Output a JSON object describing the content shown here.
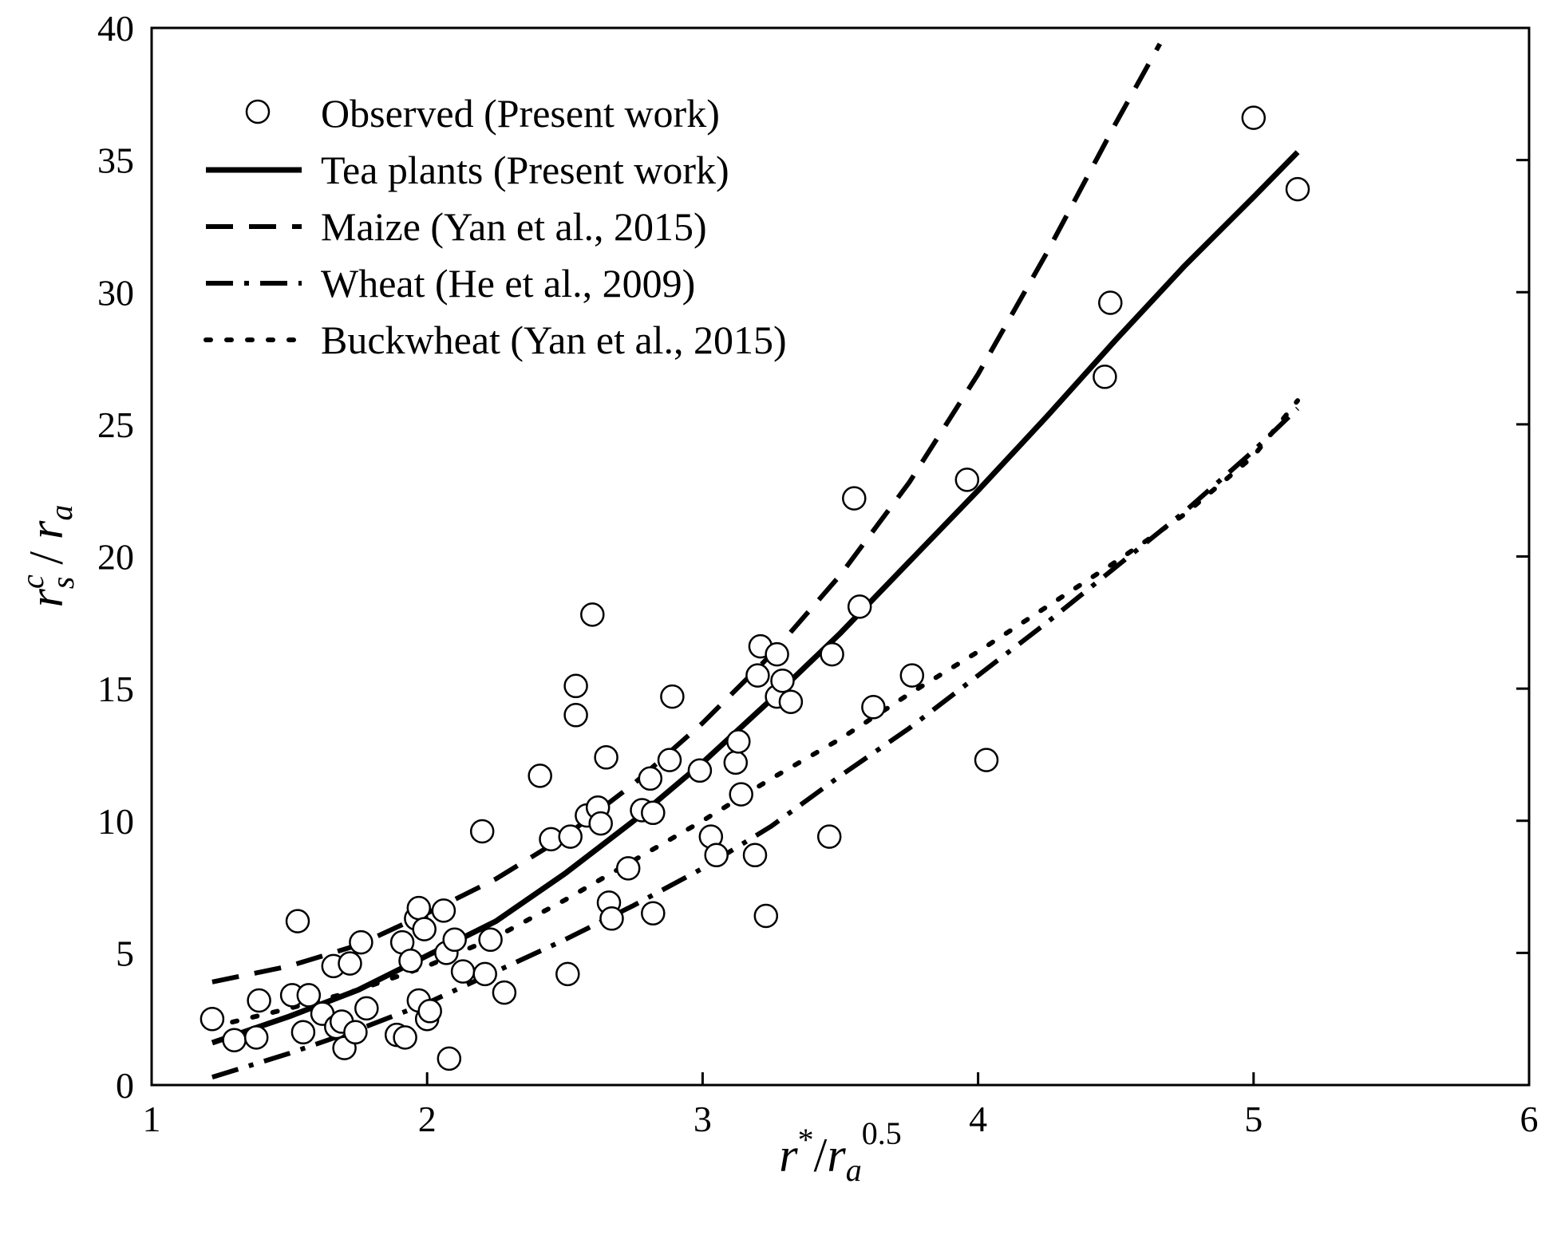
{
  "chart_data": {
    "type": "scatter",
    "title": "",
    "xlabel": {
      "base": "r",
      "star": "*",
      "slash": "/",
      "denom": "r",
      "denom_sub": "a",
      "exponent": "0.5"
    },
    "ylabel": {
      "base": "r",
      "sup": "c",
      "sub": "s",
      "slash": " / ",
      "denom": "r",
      "denom_sub": "a"
    },
    "xlim": [
      1,
      6
    ],
    "ylim": [
      0,
      40
    ],
    "xticks": [
      1,
      2,
      3,
      4,
      5,
      6
    ],
    "yticks": [
      0,
      5,
      10,
      15,
      20,
      25,
      30,
      35,
      40
    ],
    "xtick_labels": [
      "1",
      "2",
      "3",
      "4",
      "5",
      "6"
    ],
    "ytick_labels": [
      "0",
      "5",
      "10",
      "15",
      "20",
      "25",
      "30",
      "35",
      "40"
    ],
    "grid": false,
    "legend_position": "top-left",
    "series": [
      {
        "name": "Observed  (Present work)",
        "kind": "scatter",
        "marker": "open-circle",
        "points": [
          [
            1.22,
            2.5
          ],
          [
            1.3,
            1.7
          ],
          [
            1.38,
            1.8
          ],
          [
            1.39,
            3.2
          ],
          [
            1.51,
            3.4
          ],
          [
            1.53,
            6.2
          ],
          [
            1.55,
            2.0
          ],
          [
            1.57,
            3.4
          ],
          [
            1.62,
            2.7
          ],
          [
            1.66,
            4.5
          ],
          [
            1.67,
            2.2
          ],
          [
            1.69,
            2.4
          ],
          [
            1.7,
            1.4
          ],
          [
            1.72,
            4.6
          ],
          [
            1.74,
            2.0
          ],
          [
            1.76,
            5.4
          ],
          [
            1.78,
            2.9
          ],
          [
            1.89,
            1.9
          ],
          [
            1.91,
            5.4
          ],
          [
            1.92,
            1.8
          ],
          [
            1.94,
            4.7
          ],
          [
            1.96,
            6.3
          ],
          [
            1.97,
            6.7
          ],
          [
            1.97,
            3.2
          ],
          [
            1.99,
            5.9
          ],
          [
            2.0,
            2.5
          ],
          [
            2.01,
            2.8
          ],
          [
            2.06,
            6.6
          ],
          [
            2.07,
            5.0
          ],
          [
            2.08,
            1.0
          ],
          [
            2.1,
            5.5
          ],
          [
            2.13,
            4.3
          ],
          [
            2.2,
            9.6
          ],
          [
            2.21,
            4.2
          ],
          [
            2.23,
            5.5
          ],
          [
            2.28,
            3.5
          ],
          [
            2.41,
            11.7
          ],
          [
            2.45,
            9.3
          ],
          [
            2.51,
            4.2
          ],
          [
            2.52,
            9.4
          ],
          [
            2.54,
            15.1
          ],
          [
            2.54,
            14.0
          ],
          [
            2.58,
            10.2
          ],
          [
            2.6,
            17.8
          ],
          [
            2.62,
            10.5
          ],
          [
            2.63,
            9.9
          ],
          [
            2.65,
            12.4
          ],
          [
            2.66,
            6.9
          ],
          [
            2.67,
            6.3
          ],
          [
            2.73,
            8.2
          ],
          [
            2.78,
            10.4
          ],
          [
            2.81,
            11.6
          ],
          [
            2.82,
            6.5
          ],
          [
            2.82,
            10.3
          ],
          [
            2.88,
            12.3
          ],
          [
            2.89,
            14.7
          ],
          [
            2.99,
            11.9
          ],
          [
            3.03,
            9.4
          ],
          [
            3.05,
            8.7
          ],
          [
            3.12,
            12.2
          ],
          [
            3.13,
            13.0
          ],
          [
            3.14,
            11.0
          ],
          [
            3.19,
            8.7
          ],
          [
            3.2,
            15.5
          ],
          [
            3.21,
            16.6
          ],
          [
            3.23,
            6.4
          ],
          [
            3.27,
            16.3
          ],
          [
            3.27,
            14.7
          ],
          [
            3.29,
            15.3
          ],
          [
            3.32,
            14.5
          ],
          [
            3.46,
            9.4
          ],
          [
            3.47,
            16.3
          ],
          [
            3.55,
            22.2
          ],
          [
            3.57,
            18.1
          ],
          [
            3.62,
            14.3
          ],
          [
            3.76,
            15.5
          ],
          [
            3.96,
            22.9
          ],
          [
            4.03,
            12.3
          ],
          [
            4.46,
            26.8
          ],
          [
            4.48,
            29.6
          ],
          [
            5.0,
            36.6
          ],
          [
            5.16,
            33.9
          ]
        ]
      },
      {
        "name": "Tea plants (Present work)",
        "kind": "line",
        "dash": "solid",
        "points": [
          [
            1.22,
            1.6
          ],
          [
            1.5,
            2.6
          ],
          [
            1.75,
            3.6
          ],
          [
            2.0,
            4.9
          ],
          [
            2.25,
            6.2
          ],
          [
            2.5,
            8.0
          ],
          [
            2.75,
            10.0
          ],
          [
            3.0,
            12.2
          ],
          [
            3.25,
            14.6
          ],
          [
            3.5,
            17.1
          ],
          [
            3.75,
            19.8
          ],
          [
            4.0,
            22.5
          ],
          [
            4.25,
            25.3
          ],
          [
            4.5,
            28.2
          ],
          [
            4.75,
            31.0
          ],
          [
            5.0,
            33.6
          ],
          [
            5.16,
            35.3
          ]
        ]
      },
      {
        "name": "Maize (Yan et al., 2015)",
        "kind": "line",
        "dash": "dashed",
        "points": [
          [
            1.22,
            3.9
          ],
          [
            1.5,
            4.5
          ],
          [
            1.75,
            5.3
          ],
          [
            2.0,
            6.5
          ],
          [
            2.25,
            7.8
          ],
          [
            2.5,
            9.4
          ],
          [
            2.75,
            11.4
          ],
          [
            3.0,
            13.7
          ],
          [
            3.25,
            16.3
          ],
          [
            3.5,
            19.3
          ],
          [
            3.75,
            22.8
          ],
          [
            4.0,
            26.9
          ],
          [
            4.25,
            31.5
          ],
          [
            4.5,
            36.4
          ],
          [
            4.66,
            39.4
          ]
        ]
      },
      {
        "name": "Wheat (He et al., 2009)",
        "kind": "line",
        "dash": "dash-dot",
        "points": [
          [
            1.22,
            0.3
          ],
          [
            1.5,
            1.2
          ],
          [
            1.75,
            2.1
          ],
          [
            2.0,
            3.1
          ],
          [
            2.25,
            4.3
          ],
          [
            2.5,
            5.5
          ],
          [
            2.75,
            6.8
          ],
          [
            3.0,
            8.2
          ],
          [
            3.25,
            9.8
          ],
          [
            3.5,
            11.7
          ],
          [
            3.75,
            13.5
          ],
          [
            4.0,
            15.5
          ],
          [
            4.25,
            17.5
          ],
          [
            4.5,
            19.6
          ],
          [
            4.75,
            21.7
          ],
          [
            5.0,
            24.0
          ],
          [
            5.16,
            25.6
          ]
        ]
      },
      {
        "name": "Buckwheat (Yan et al., 2015)",
        "kind": "line",
        "dash": "dotted",
        "points": [
          [
            1.22,
            2.2
          ],
          [
            1.5,
            2.9
          ],
          [
            1.75,
            3.6
          ],
          [
            2.0,
            4.5
          ],
          [
            2.25,
            5.6
          ],
          [
            2.5,
            7.0
          ],
          [
            2.75,
            8.5
          ],
          [
            3.0,
            10.0
          ],
          [
            3.25,
            11.6
          ],
          [
            3.5,
            13.1
          ],
          [
            3.75,
            14.8
          ],
          [
            4.0,
            16.4
          ],
          [
            4.25,
            18.1
          ],
          [
            4.5,
            19.8
          ],
          [
            4.75,
            21.6
          ],
          [
            5.0,
            23.8
          ],
          [
            5.16,
            25.9
          ]
        ]
      }
    ]
  }
}
